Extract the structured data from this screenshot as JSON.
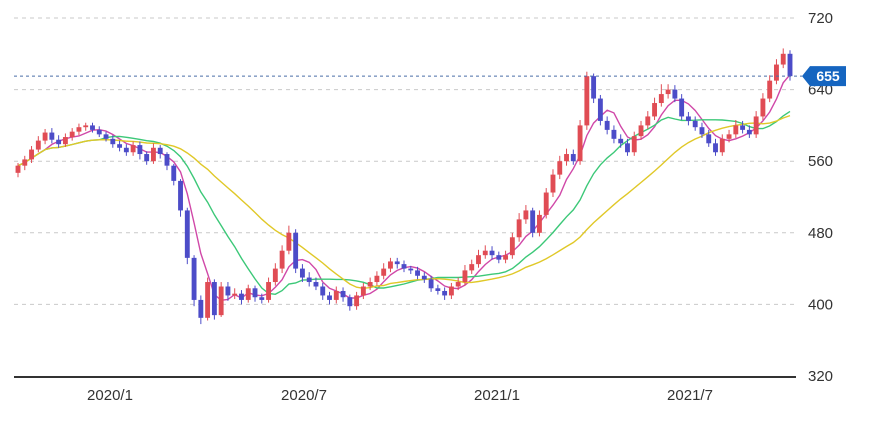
{
  "chart_data": {
    "type": "candlestick",
    "title": "",
    "xlabel": "",
    "ylabel": "",
    "ylim": [
      320,
      720
    ],
    "y_ticks": [
      "720",
      "640",
      "560",
      "480",
      "400",
      "320"
    ],
    "x_ticks": [
      "2020/1",
      "2020/7",
      "2021/1",
      "2021/7"
    ],
    "current_price": "655",
    "grid": "horizontal dashed",
    "colors": {
      "up": "#e04c54",
      "down": "#4c4cc8",
      "ma_short": "#d048a8",
      "ma_mid": "#3cc878",
      "ma_long": "#e0c828",
      "price_line": "#4a6da7",
      "price_tag": "#1565c0"
    },
    "candles": [
      [
        547,
        555,
        542,
        558
      ],
      [
        555,
        562,
        550,
        566
      ],
      [
        562,
        573,
        558,
        577
      ],
      [
        573,
        583,
        570,
        588
      ],
      [
        583,
        592,
        579,
        596
      ],
      [
        592,
        584,
        580,
        597
      ],
      [
        584,
        579,
        575,
        589
      ],
      [
        579,
        587,
        576,
        591
      ],
      [
        587,
        593,
        583,
        597
      ],
      [
        593,
        598,
        589,
        602
      ],
      [
        598,
        600,
        594,
        603
      ],
      [
        600,
        595,
        592,
        603
      ],
      [
        595,
        590,
        587,
        599
      ],
      [
        590,
        585,
        582,
        593
      ],
      [
        585,
        579,
        575,
        589
      ],
      [
        579,
        575,
        571,
        583
      ],
      [
        575,
        570,
        566,
        579
      ],
      [
        570,
        578,
        566,
        582
      ],
      [
        578,
        568,
        562,
        582
      ],
      [
        568,
        560,
        556,
        571
      ],
      [
        560,
        575,
        557,
        580
      ],
      [
        575,
        568,
        563,
        578
      ],
      [
        568,
        555,
        550,
        570
      ],
      [
        555,
        538,
        533,
        557
      ],
      [
        538,
        505,
        498,
        540
      ],
      [
        505,
        452,
        445,
        508
      ],
      [
        452,
        405,
        398,
        455
      ],
      [
        405,
        385,
        378,
        410
      ],
      [
        385,
        425,
        382,
        430
      ],
      [
        425,
        388,
        383,
        428
      ],
      [
        388,
        420,
        386,
        425
      ],
      [
        420,
        410,
        404,
        425
      ],
      [
        410,
        412,
        406,
        418
      ],
      [
        412,
        405,
        400,
        416
      ],
      [
        405,
        418,
        402,
        422
      ],
      [
        418,
        408,
        403,
        421
      ],
      [
        408,
        405,
        401,
        412
      ],
      [
        405,
        425,
        402,
        430
      ],
      [
        425,
        440,
        421,
        446
      ],
      [
        440,
        460,
        435,
        466
      ],
      [
        460,
        480,
        456,
        488
      ],
      [
        480,
        440,
        435,
        484
      ],
      [
        440,
        430,
        425,
        445
      ],
      [
        430,
        425,
        420,
        436
      ],
      [
        425,
        420,
        416,
        430
      ],
      [
        420,
        410,
        405,
        424
      ],
      [
        410,
        405,
        400,
        414
      ],
      [
        405,
        415,
        401,
        420
      ],
      [
        415,
        408,
        403,
        419
      ],
      [
        408,
        398,
        393,
        411
      ],
      [
        398,
        410,
        394,
        414
      ],
      [
        410,
        420,
        406,
        424
      ],
      [
        420,
        425,
        416,
        430
      ],
      [
        425,
        432,
        421,
        437
      ],
      [
        432,
        440,
        428,
        446
      ],
      [
        440,
        448,
        436,
        452
      ],
      [
        448,
        445,
        440,
        452
      ],
      [
        445,
        440,
        436,
        449
      ],
      [
        440,
        438,
        434,
        443
      ],
      [
        438,
        432,
        428,
        442
      ],
      [
        432,
        428,
        424,
        436
      ],
      [
        428,
        418,
        414,
        432
      ],
      [
        418,
        415,
        411,
        422
      ],
      [
        415,
        410,
        405,
        419
      ],
      [
        410,
        420,
        406,
        424
      ],
      [
        420,
        425,
        416,
        430
      ],
      [
        425,
        438,
        421,
        444
      ],
      [
        438,
        445,
        434,
        450
      ],
      [
        445,
        455,
        441,
        461
      ],
      [
        455,
        460,
        451,
        466
      ],
      [
        460,
        455,
        450,
        465
      ],
      [
        455,
        450,
        446,
        459
      ],
      [
        450,
        455,
        446,
        460
      ],
      [
        455,
        475,
        451,
        480
      ],
      [
        475,
        495,
        470,
        502
      ],
      [
        495,
        505,
        490,
        511
      ],
      [
        505,
        480,
        475,
        508
      ],
      [
        480,
        500,
        476,
        505
      ],
      [
        500,
        525,
        496,
        530
      ],
      [
        525,
        545,
        520,
        551
      ],
      [
        545,
        560,
        540,
        566
      ],
      [
        560,
        568,
        555,
        574
      ],
      [
        568,
        560,
        556,
        573
      ],
      [
        560,
        600,
        556,
        606
      ],
      [
        600,
        655,
        595,
        660
      ],
      [
        655,
        630,
        625,
        658
      ],
      [
        630,
        605,
        600,
        634
      ],
      [
        605,
        595,
        590,
        610
      ],
      [
        595,
        585,
        580,
        600
      ],
      [
        585,
        580,
        575,
        590
      ],
      [
        580,
        570,
        566,
        585
      ],
      [
        570,
        588,
        566,
        593
      ],
      [
        588,
        600,
        584,
        605
      ],
      [
        600,
        610,
        596,
        616
      ],
      [
        610,
        625,
        606,
        631
      ],
      [
        625,
        635,
        621,
        646
      ],
      [
        635,
        640,
        630,
        646
      ],
      [
        640,
        630,
        626,
        645
      ],
      [
        630,
        610,
        606,
        635
      ],
      [
        610,
        605,
        600,
        615
      ],
      [
        605,
        598,
        594,
        610
      ],
      [
        598,
        590,
        586,
        603
      ],
      [
        590,
        580,
        576,
        595
      ],
      [
        580,
        570,
        566,
        585
      ],
      [
        570,
        585,
        566,
        590
      ],
      [
        585,
        590,
        581,
        595
      ],
      [
        590,
        600,
        586,
        606
      ],
      [
        600,
        595,
        591,
        605
      ],
      [
        595,
        590,
        586,
        600
      ],
      [
        590,
        610,
        586,
        616
      ],
      [
        610,
        630,
        606,
        636
      ],
      [
        630,
        650,
        626,
        656
      ],
      [
        650,
        668,
        646,
        674
      ],
      [
        668,
        680,
        664,
        686
      ],
      [
        680,
        655,
        650,
        684
      ]
    ]
  }
}
